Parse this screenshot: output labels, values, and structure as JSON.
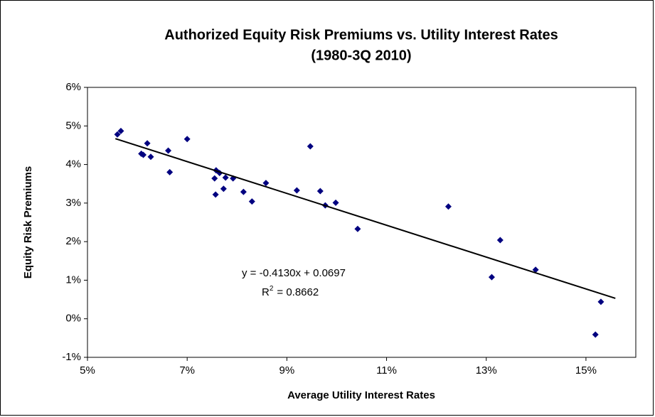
{
  "chart_data": {
    "type": "scatter",
    "title": "Authorized Equity Risk Premiums vs. Utility Interest Rates",
    "subtitle": "(1980-3Q 2010)",
    "x_label": "Average Utility Interest Rates",
    "y_label": "Equity Risk Premiums",
    "xlim": [
      5,
      16
    ],
    "ylim": [
      -1,
      6
    ],
    "xticks": [
      {
        "value": 5,
        "label": "5%"
      },
      {
        "value": 7,
        "label": "7%"
      },
      {
        "value": 9,
        "label": "9%"
      },
      {
        "value": 11,
        "label": "11%"
      },
      {
        "value": 13,
        "label": "13%"
      },
      {
        "value": 15,
        "label": "15%"
      }
    ],
    "yticks": [
      {
        "value": -1,
        "label": "-1%"
      },
      {
        "value": 0,
        "label": "0%"
      },
      {
        "value": 1,
        "label": "1%"
      },
      {
        "value": 2,
        "label": "2%"
      },
      {
        "value": 3,
        "label": "3%"
      },
      {
        "value": 4,
        "label": "4%"
      },
      {
        "value": 5,
        "label": "5%"
      },
      {
        "value": 6,
        "label": "6%"
      }
    ],
    "grid": false,
    "series": [
      {
        "type": "scatter",
        "color": "#000080",
        "x": [
          5.6,
          5.67,
          6.08,
          6.12,
          6.2,
          6.27,
          6.62,
          6.65,
          7.0,
          7.55,
          7.57,
          7.58,
          7.65,
          7.73,
          7.77,
          7.92,
          8.13,
          8.3,
          8.58,
          9.2,
          9.47,
          9.67,
          9.77,
          9.98,
          10.42,
          12.24,
          13.11,
          13.28,
          13.99,
          15.3,
          15.19
        ],
        "values": [
          4.78,
          4.87,
          4.28,
          4.25,
          4.55,
          4.2,
          4.36,
          3.8,
          4.66,
          3.64,
          3.22,
          3.85,
          3.78,
          3.37,
          3.66,
          3.64,
          3.29,
          3.04,
          3.52,
          3.33,
          4.47,
          3.31,
          2.94,
          3.01,
          2.33,
          2.91,
          1.08,
          2.04,
          1.27,
          0.44,
          -0.41
        ]
      },
      {
        "type": "trendline",
        "color": "#000000",
        "x": [
          5.56,
          15.59
        ],
        "values": [
          4.67,
          0.53
        ]
      }
    ],
    "annotations": {
      "equation": "y = -0.4130x + 0.0697",
      "r_squared": {
        "base": "R",
        "superscript": "2",
        "rest": "= 0.8662"
      }
    }
  }
}
